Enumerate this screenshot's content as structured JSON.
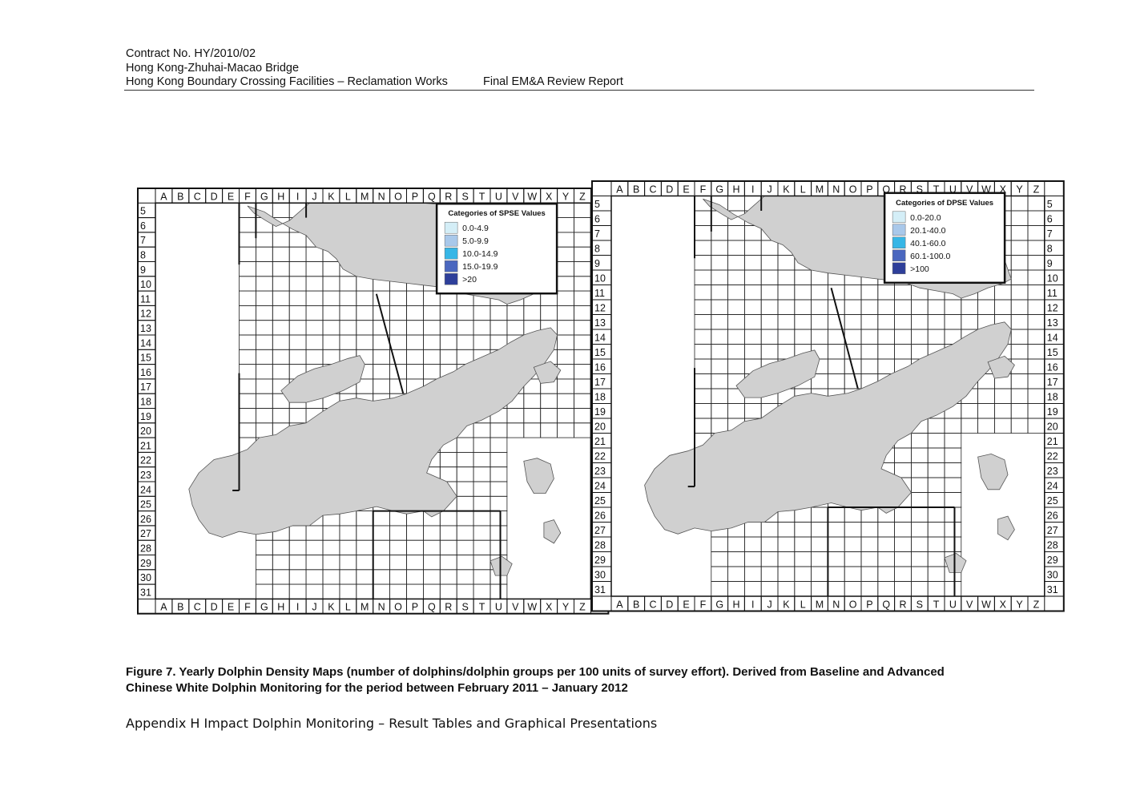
{
  "header": {
    "line1": "Contract No. HY/2010/02",
    "line2": "Hong Kong-Zhuhai-Macao Bridge",
    "line3_left": "Hong Kong Boundary Crossing Facilities – Reclamation Works",
    "line3_right": "Final EM&A Review Report"
  },
  "grid": {
    "columns": [
      "A",
      "B",
      "C",
      "D",
      "E",
      "F",
      "G",
      "H",
      "I",
      "J",
      "K",
      "L",
      "M",
      "N",
      "O",
      "P",
      "Q",
      "R",
      "S",
      "T",
      "U",
      "V",
      "W",
      "X",
      "Y",
      "Z"
    ],
    "rows": [
      "5",
      "6",
      "7",
      "8",
      "9",
      "10",
      "11",
      "12",
      "13",
      "14",
      "15",
      "16",
      "17",
      "18",
      "19",
      "20",
      "21",
      "22",
      "23",
      "24",
      "25",
      "26",
      "27",
      "28",
      "29",
      "30",
      "31"
    ]
  },
  "maps": [
    {
      "legend_title": "Categories of SPSE Values",
      "legend": [
        {
          "label": "0.0-4.9",
          "color": "#d4eef7"
        },
        {
          "label": "5.0-9.9",
          "color": "#a9c8ea"
        },
        {
          "label": "10.0-14.9",
          "color": "#36b6e6"
        },
        {
          "label": "15.0-19.9",
          "color": "#4a67bf"
        },
        {
          "label": ">20",
          "color": "#2e3f9a"
        }
      ]
    },
    {
      "legend_title": "Categories of DPSE Values",
      "legend": [
        {
          "label": "0.0-20.0",
          "color": "#d4eef7"
        },
        {
          "label": "20.1-40.0",
          "color": "#a9c8ea"
        },
        {
          "label": "40.1-60.0",
          "color": "#36b6e6"
        },
        {
          "label": "60.1-100.0",
          "color": "#4a67bf"
        },
        {
          "label": ">100",
          "color": "#2e3f9a"
        }
      ]
    }
  ],
  "caption": {
    "line1": "Figure 7.  Yearly Dolphin Density Maps (number of dolphins/dolphin groups per 100 units of survey effort).  Derived from Baseline and Advanced",
    "line2": "Chinese White Dolphin Monitoring for the period between February 2011 – January 2012"
  },
  "appendix": "Appendix H Impact Dolphin Monitoring – Result Tables and Graphical Presentations"
}
